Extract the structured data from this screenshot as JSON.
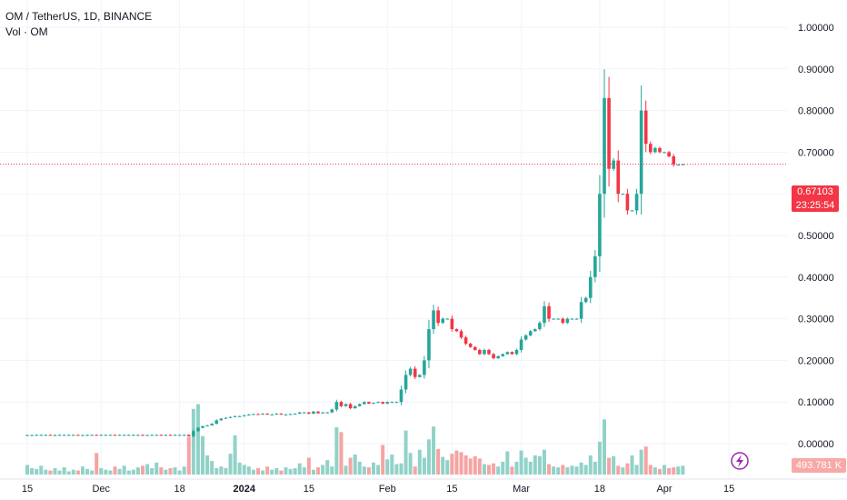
{
  "header": {
    "symbol_line": "OM / TetherUS, 1D, BINANCE",
    "volume_line": "Vol · OM"
  },
  "last_price": {
    "value": "0.67103",
    "countdown": "23:25:54"
  },
  "volume_last": "493.781 K",
  "colors": {
    "up": "#26a69a",
    "down": "#f23645",
    "vol_up": "#91d2c8",
    "vol_down": "#f5a4a3",
    "price_line": "#f23645",
    "icon": "#9c27b0"
  },
  "icons": {
    "flash": "lightning-bolt-icon"
  },
  "chart_data": {
    "type": "candlestick",
    "title": "OM / TetherUS, 1D, BINANCE",
    "ylim": [
      -0.03,
      1.03
    ],
    "y_ticks": [
      "1.00000",
      "0.90000",
      "0.80000",
      "0.70000",
      "0.60000",
      "0.50000",
      "0.40000",
      "0.30000",
      "0.20000",
      "0.10000",
      "0.00000"
    ],
    "x_ticks": [
      {
        "label": "15",
        "bold": false,
        "day": 0
      },
      {
        "label": "Dec",
        "bold": false,
        "day": 16
      },
      {
        "label": "18",
        "bold": false,
        "day": 33
      },
      {
        "label": "2024",
        "bold": true,
        "day": 47
      },
      {
        "label": "15",
        "bold": false,
        "day": 61
      },
      {
        "label": "Feb",
        "bold": false,
        "day": 78
      },
      {
        "label": "15",
        "bold": false,
        "day": 92
      },
      {
        "label": "Mar",
        "bold": false,
        "day": 107
      },
      {
        "label": "18",
        "bold": false,
        "day": 124
      },
      {
        "label": "Apr",
        "bold": false,
        "day": 138
      },
      {
        "label": "15",
        "bold": false,
        "day": 152
      }
    ],
    "close": [
      0.0205,
      0.0205,
      0.021,
      0.021,
      0.021,
      0.0205,
      0.0205,
      0.021,
      0.021,
      0.021,
      0.021,
      0.0205,
      0.0205,
      0.021,
      0.021,
      0.0205,
      0.021,
      0.021,
      0.021,
      0.0205,
      0.021,
      0.021,
      0.021,
      0.021,
      0.021,
      0.0205,
      0.0205,
      0.021,
      0.021,
      0.0205,
      0.021,
      0.0205,
      0.021,
      0.021,
      0.021,
      0.018,
      0.03,
      0.038,
      0.042,
      0.044,
      0.048,
      0.056,
      0.06,
      0.062,
      0.064,
      0.066,
      0.066,
      0.068,
      0.07,
      0.071,
      0.07,
      0.072,
      0.07,
      0.07,
      0.072,
      0.07,
      0.07,
      0.071,
      0.072,
      0.075,
      0.075,
      0.072,
      0.077,
      0.073,
      0.075,
      0.075,
      0.082,
      0.1,
      0.09,
      0.095,
      0.085,
      0.09,
      0.095,
      0.1,
      0.096,
      0.098,
      0.1,
      0.096,
      0.1,
      0.1,
      0.1,
      0.13,
      0.165,
      0.18,
      0.16,
      0.165,
      0.2,
      0.275,
      0.32,
      0.29,
      0.3,
      0.3,
      0.275,
      0.27,
      0.255,
      0.24,
      0.232,
      0.225,
      0.215,
      0.225,
      0.215,
      0.205,
      0.21,
      0.215,
      0.22,
      0.215,
      0.225,
      0.25,
      0.26,
      0.27,
      0.275,
      0.29,
      0.33,
      0.3,
      0.3,
      0.3,
      0.29,
      0.3,
      0.3,
      0.3,
      0.34,
      0.35,
      0.4,
      0.45,
      0.6,
      0.83,
      0.66,
      0.68,
      0.6,
      0.6,
      0.56,
      0.56,
      0.6,
      0.8,
      0.72,
      0.7,
      0.71,
      0.7,
      0.7,
      0.69,
      0.67,
      0.67,
      0.671
    ],
    "volume": [
      1.2,
      0.8,
      0.7,
      1.1,
      0.6,
      0.5,
      0.8,
      0.5,
      0.9,
      0.4,
      0.6,
      0.5,
      1.0,
      0.7,
      0.5,
      2.7,
      0.8,
      0.6,
      0.5,
      1.0,
      0.7,
      1.1,
      0.5,
      0.6,
      0.9,
      1.1,
      1.3,
      0.8,
      1.5,
      0.9,
      0.6,
      0.8,
      0.9,
      0.5,
      1.0,
      4.7,
      8.2,
      8.8,
      4.8,
      2.4,
      1.7,
      0.8,
      1.0,
      0.8,
      2.6,
      4.9,
      1.5,
      1.2,
      1.0,
      0.6,
      0.8,
      0.5,
      1.0,
      0.6,
      0.8,
      0.5,
      0.9,
      0.7,
      0.8,
      1.4,
      0.9,
      2.1,
      0.6,
      0.9,
      1.2,
      1.8,
      1.0,
      5.9,
      5.3,
      1.1,
      2.1,
      2.5,
      1.6,
      1.0,
      0.9,
      1.5,
      1.2,
      3.7,
      1.9,
      2.5,
      1.3,
      1.4,
      5.5,
      2.7,
      1.0,
      3.1,
      2.1,
      4.4,
      6.0,
      3.2,
      2.2,
      1.8,
      2.6,
      3.0,
      2.8,
      2.4,
      2.0,
      2.3,
      2.0,
      1.3,
      1.2,
      1.4,
      1.0,
      1.6,
      2.9,
      1.0,
      1.6,
      3.0,
      2.1,
      1.6,
      2.4,
      2.3,
      3.1,
      1.3,
      1.0,
      0.9,
      1.2,
      0.9,
      1.1,
      1.0,
      1.5,
      1.2,
      2.4,
      1.6,
      4.1,
      6.9,
      2.1,
      2.3,
      1.1,
      0.9,
      1.4,
      2.4,
      1.2,
      3.1,
      3.5,
      1.2,
      0.9,
      0.7,
      1.2,
      0.8,
      0.9,
      1.0,
      1.1
    ]
  }
}
